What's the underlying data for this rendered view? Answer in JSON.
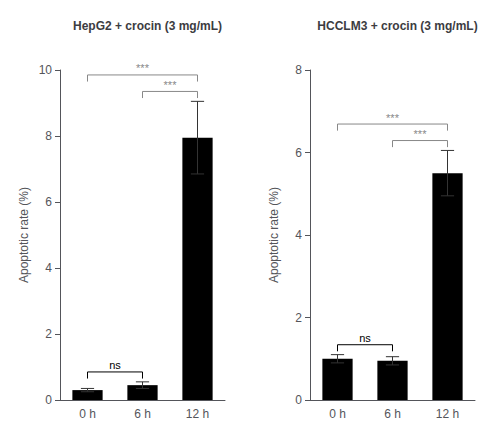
{
  "chart_data": [
    {
      "type": "bar",
      "title": "HepG2 + crocin (3 mg/mL)",
      "categories": [
        "0 h",
        "6 h",
        "12 h"
      ],
      "values": [
        0.3,
        0.45,
        7.95
      ],
      "errors": [
        0.05,
        0.1,
        1.1
      ],
      "color": "#000000",
      "ylabel": "Apoptotic rate (%)",
      "ylim": [
        0,
        10
      ],
      "yticks": [
        0,
        2,
        4,
        6,
        8,
        10
      ],
      "grid": false,
      "annotations": [
        {
          "text": "ns",
          "between": [
            "0 h",
            "6 h"
          ],
          "color": "#000000"
        },
        {
          "text": "***",
          "between": [
            "0 h",
            "12 h"
          ],
          "color": "#888888"
        },
        {
          "text": "***",
          "between": [
            "6 h",
            "12 h"
          ],
          "color": "#888888"
        }
      ]
    },
    {
      "type": "bar",
      "title": "HCCLM3 + crocin (3 mg/mL)",
      "categories": [
        "0 h",
        "6 h",
        "12 h"
      ],
      "values": [
        1.0,
        0.95,
        5.5
      ],
      "errors": [
        0.1,
        0.1,
        0.55
      ],
      "color": "#000000",
      "ylabel": "Apoptotic rate (%)",
      "ylim": [
        0,
        8
      ],
      "yticks": [
        0,
        2,
        4,
        6,
        8
      ],
      "grid": false,
      "annotations": [
        {
          "text": "ns",
          "between": [
            "0 h",
            "6 h"
          ],
          "color": "#000000"
        },
        {
          "text": "***",
          "between": [
            "0 h",
            "12 h"
          ],
          "color": "#888888"
        },
        {
          "text": "***",
          "between": [
            "6 h",
            "12 h"
          ],
          "color": "#888888"
        }
      ]
    }
  ]
}
